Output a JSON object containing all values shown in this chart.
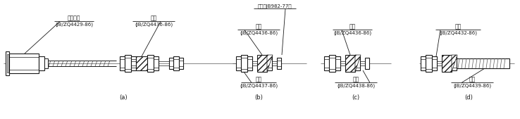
{
  "bg_color": "#ffffff",
  "fig_width": 7.38,
  "fig_height": 1.69,
  "dpi": 100,
  "annotations": {
    "a_label": "(a)",
    "a_part1_name": "胶管接头",
    "a_part1_code": "(JB/ZQ4429-86)",
    "a_part2_name": "垒圈",
    "a_part2_code": "(JB/ZQ4436-86)",
    "b_label": "(b)",
    "b_top_name": "坤圈（JB982-77）",
    "b_part1_name": "垒圈",
    "b_part1_code": "(JB/ZQ4436-86)",
    "b_part2_name": "接头",
    "b_part2_code": "(JB/ZQ4437-86)",
    "c_label": "(c)",
    "c_part1_name": "坤圈",
    "c_part1_code": "(JB/ZQ4436-86)",
    "c_part2_name": "螺母",
    "c_part2_code": "(JB/ZQ4438-86)",
    "d_label": "(d)",
    "d_part1_name": "螺母",
    "d_part1_code": "(JB/ZQ4432-86)",
    "d_part2_name": "接管",
    "d_part2_code": "(JB/ZQ4439-86)"
  },
  "lc": "#1a1a1a",
  "tc": "#1a1a1a",
  "fs_name": 5.5,
  "fs_code": 5.0,
  "fs_label": 6.0
}
